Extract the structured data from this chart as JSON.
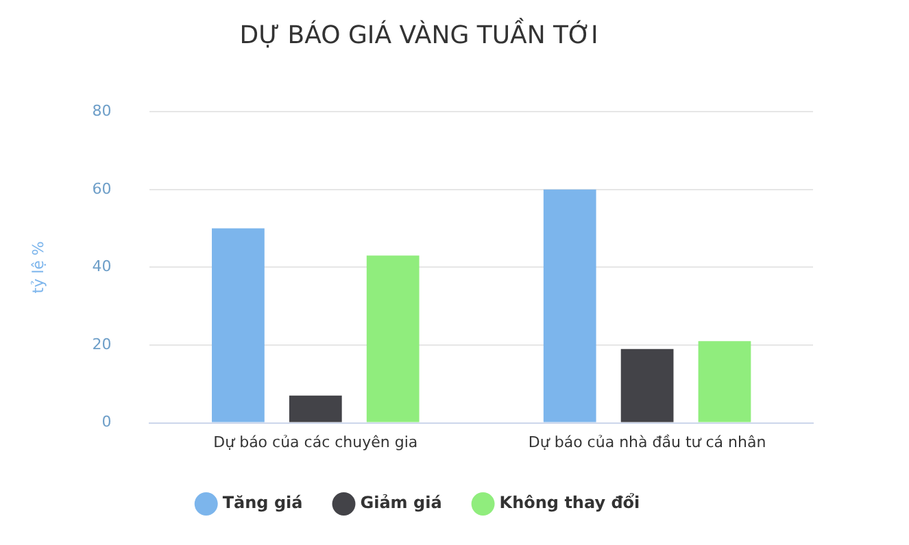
{
  "chart_data": {
    "type": "bar",
    "title": "DỰ BÁO GIÁ VÀNG TUẦN TỚI",
    "ylabel": "tỷ lệ %",
    "categories": [
      "Dự báo của các chuyên gia",
      "Dự báo của nhà đầu tư cá nhân"
    ],
    "series": [
      {
        "name": "Tăng giá",
        "color": "#7cb5ec",
        "values": [
          50,
          60
        ]
      },
      {
        "name": "Giảm giá",
        "color": "#434348",
        "values": [
          7,
          19
        ]
      },
      {
        "name": "Không thay đổi",
        "color": "#90ed7d",
        "values": [
          43,
          21
        ]
      }
    ],
    "ylim": [
      0,
      80
    ],
    "yticks": [
      0,
      20,
      40,
      60,
      80
    ],
    "grid": "y",
    "legend": "bottom"
  }
}
